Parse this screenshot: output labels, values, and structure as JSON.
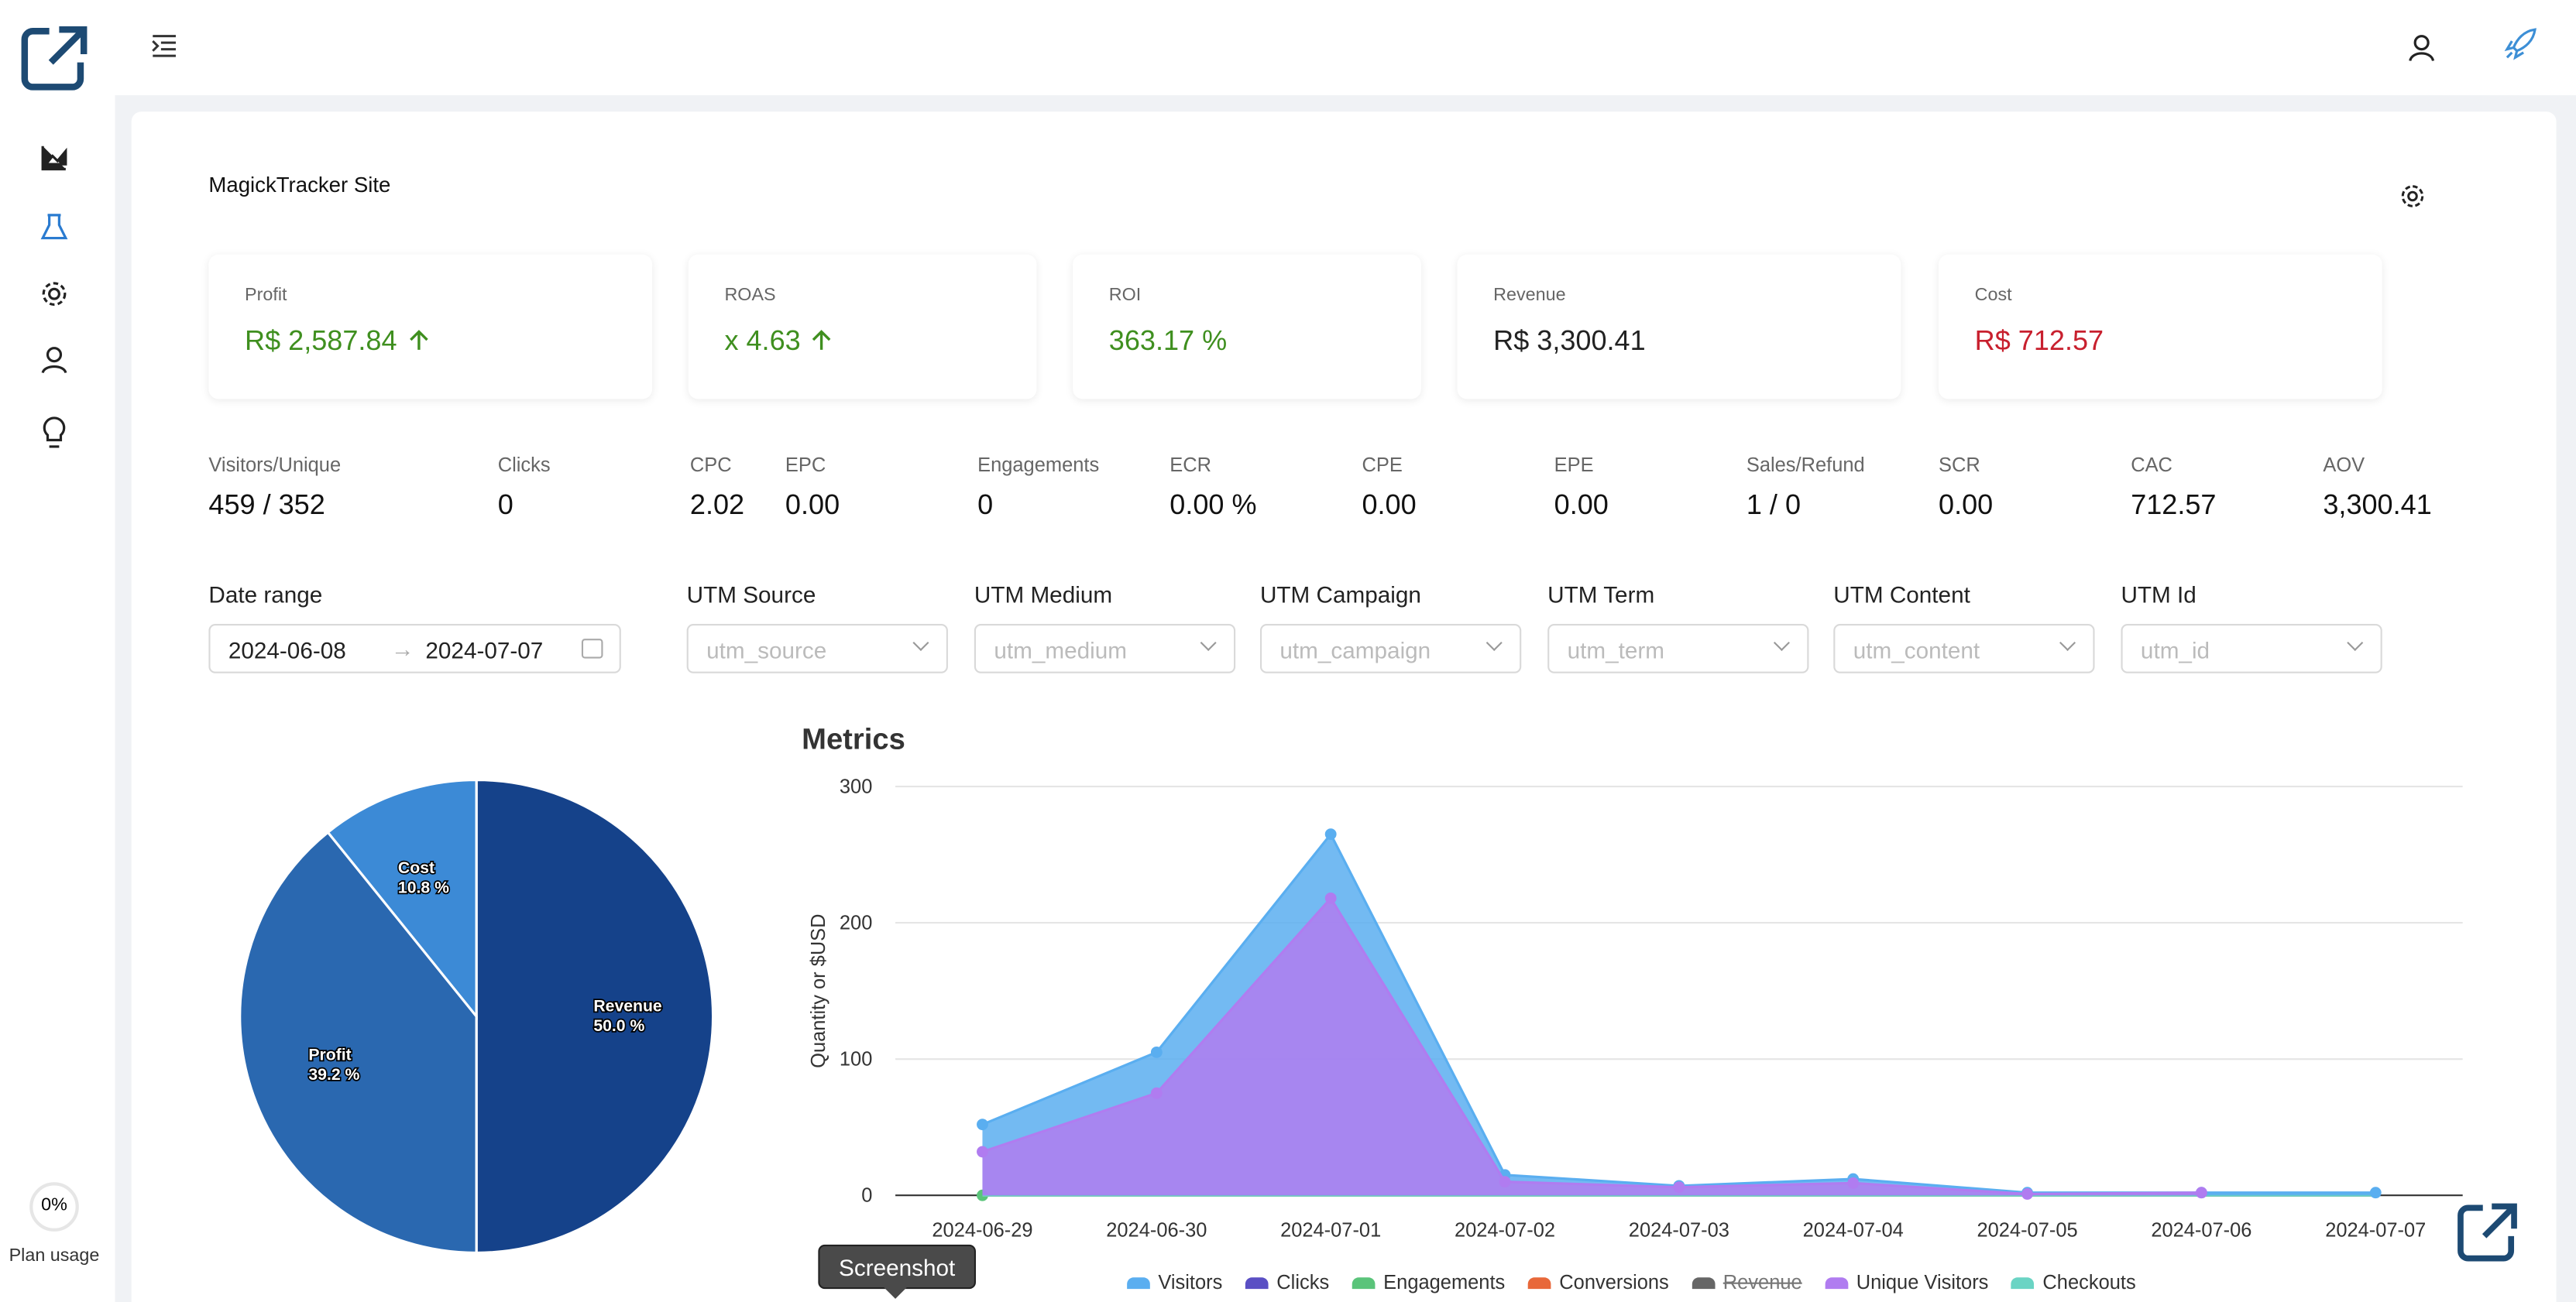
{
  "sidebar": {
    "plan_percent": "0%",
    "plan_label": "Plan usage"
  },
  "site_title": "MagickTracker Site",
  "kpis": [
    {
      "label": "Profit",
      "value": "R$ 2,587.84",
      "color": "#3f8f1f",
      "arrow": true
    },
    {
      "label": "ROAS",
      "value": "x 4.63",
      "color": "#3f8f1f",
      "arrow": true
    },
    {
      "label": "ROI",
      "value": "363.17 %",
      "color": "#3f8f1f",
      "arrow": false
    },
    {
      "label": "Revenue",
      "value": "R$ 3,300.41",
      "color": "#222222",
      "arrow": false
    },
    {
      "label": "Cost",
      "value": "R$ 712.57",
      "color": "#c8202e",
      "arrow": false
    }
  ],
  "metrics": [
    {
      "label": "Visitors/Unique",
      "value": "459 / 352"
    },
    {
      "label": "Clicks",
      "value": "0"
    },
    {
      "label": "CPC",
      "value": "2.02"
    },
    {
      "label": "EPC",
      "value": "0.00"
    },
    {
      "label": "Engagements",
      "value": "0"
    },
    {
      "label": "ECR",
      "value": "0.00 %"
    },
    {
      "label": "CPE",
      "value": "0.00"
    },
    {
      "label": "EPE",
      "value": "0.00"
    },
    {
      "label": "Sales/Refund",
      "value": "1 / 0"
    },
    {
      "label": "SCR",
      "value": "0.00"
    },
    {
      "label": "CAC",
      "value": "712.57"
    },
    {
      "label": "AOV",
      "value": "3,300.41"
    }
  ],
  "date_range": {
    "label": "Date range",
    "start": "2024-06-08",
    "end": "2024-07-07"
  },
  "filters": [
    {
      "label": "UTM Source",
      "placeholder": "utm_source"
    },
    {
      "label": "UTM Medium",
      "placeholder": "utm_medium"
    },
    {
      "label": "UTM Campaign",
      "placeholder": "utm_campaign"
    },
    {
      "label": "UTM Term",
      "placeholder": "utm_term"
    },
    {
      "label": "UTM Content",
      "placeholder": "utm_content"
    },
    {
      "label": "UTM Id",
      "placeholder": "utm_id"
    }
  ],
  "tooltip": "Screenshot",
  "chart_data": [
    {
      "type": "pie",
      "categories": [
        "Revenue",
        "Profit",
        "Cost"
      ],
      "values": [
        50.0,
        39.2,
        10.8
      ],
      "value_labels": [
        "50.0 %",
        "39.2 %",
        "10.8 %"
      ],
      "colors": [
        "#15428a",
        "#2a68b0",
        "#3c8ad6"
      ]
    },
    {
      "type": "area",
      "title": "Metrics",
      "y_label": "Quantity or $USD",
      "categories": [
        "2024-06-29",
        "2024-06-30",
        "2024-07-01",
        "2024-07-02",
        "2024-07-03",
        "2024-07-04",
        "2024-07-05",
        "2024-07-06",
        "2024-07-07"
      ],
      "ylim": [
        0,
        300
      ],
      "yticks": [
        0,
        100,
        200,
        300
      ],
      "grid": true,
      "series": [
        {
          "name": "Visitors",
          "color": "#5aaef0",
          "fill": true,
          "values": [
            52,
            105,
            265,
            15,
            7,
            12,
            2,
            2,
            2
          ]
        },
        {
          "name": "Clicks",
          "color": "#5a4fc4",
          "values": [
            0,
            0,
            0,
            0,
            0,
            0,
            0,
            0,
            0
          ]
        },
        {
          "name": "Engagements",
          "color": "#5ac47a",
          "values": [
            0,
            0,
            0,
            0,
            0,
            0,
            0,
            0,
            0
          ]
        },
        {
          "name": "Conversions",
          "color": "#e8683a",
          "values": [
            0,
            0,
            0,
            0,
            0,
            0,
            0,
            0,
            0
          ]
        },
        {
          "name": "Revenue",
          "color": "#666666",
          "hidden": true
        },
        {
          "name": "Unique Visitors",
          "color": "#b07cf0",
          "fill": true,
          "values": [
            32,
            75,
            218,
            10,
            6,
            9,
            1,
            2,
            null
          ]
        },
        {
          "name": "Checkouts",
          "color": "#6ad4c4",
          "values": [
            0,
            0,
            0,
            0,
            0,
            0,
            0,
            0,
            0
          ]
        }
      ]
    }
  ]
}
